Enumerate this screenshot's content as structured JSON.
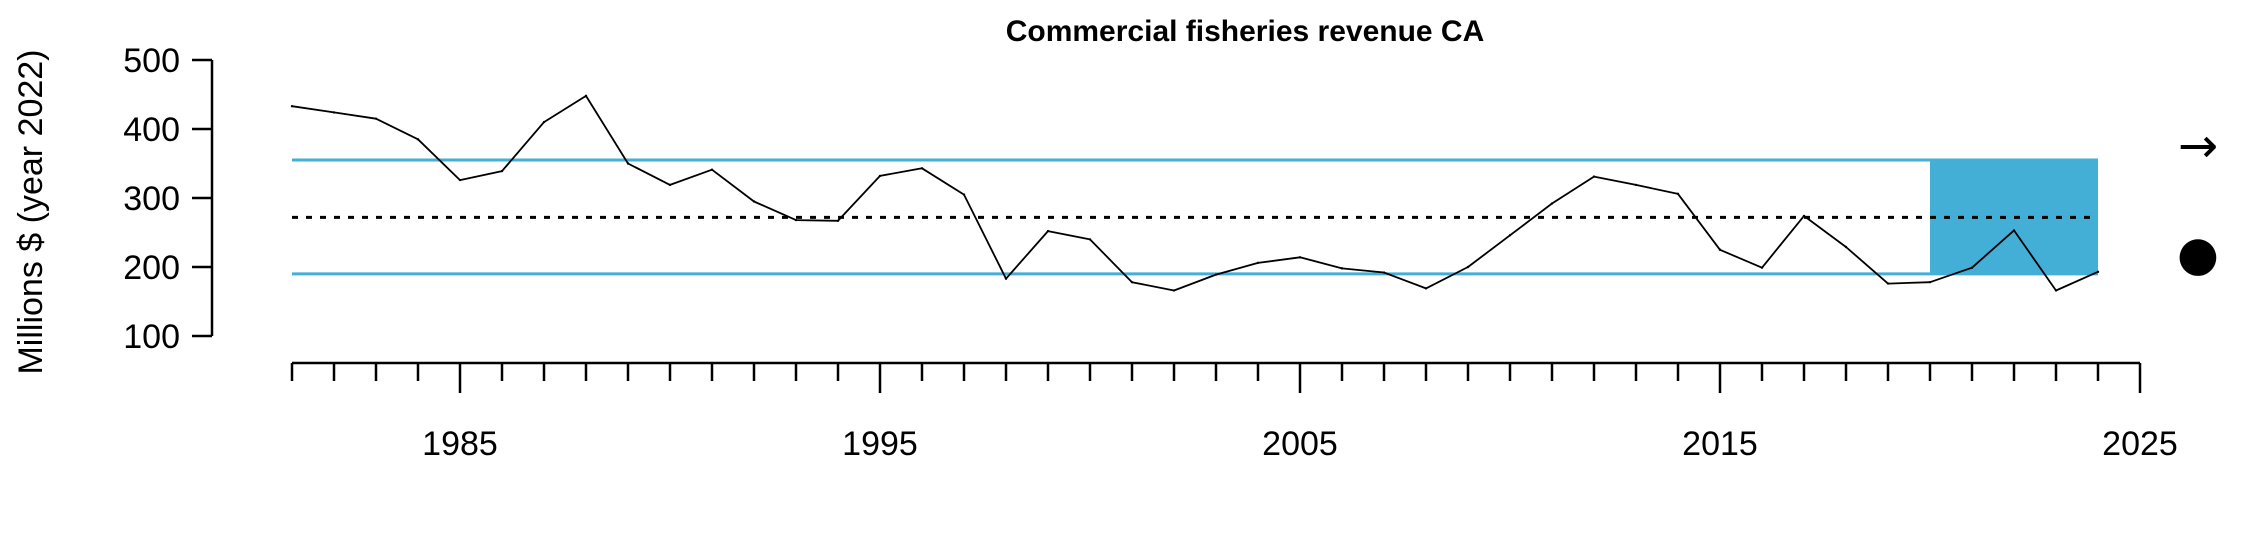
{
  "chart_data": {
    "type": "line",
    "title": "Commercial fisheries revenue CA",
    "xlabel": "",
    "ylabel": "Millions $ (year 2022)",
    "xlim": [
      1981,
      2025
    ],
    "ylim": [
      100,
      500
    ],
    "x_ticks_major": [
      1985,
      1995,
      2005,
      2015,
      2025
    ],
    "y_ticks": [
      100,
      200,
      300,
      400,
      500
    ],
    "grid": false,
    "x": [
      1981,
      1982,
      1983,
      1984,
      1985,
      1986,
      1987,
      1988,
      1989,
      1990,
      1991,
      1992,
      1993,
      1994,
      1995,
      1996,
      1997,
      1998,
      1999,
      2000,
      2001,
      2002,
      2003,
      2004,
      2005,
      2006,
      2007,
      2008,
      2009,
      2010,
      2011,
      2012,
      2013,
      2014,
      2015,
      2016,
      2017,
      2018,
      2019,
      2020,
      2021,
      2022,
      2023,
      2024
    ],
    "series": [
      {
        "values": [
          433,
          424,
          415,
          385,
          326,
          339,
          410,
          448,
          350,
          319,
          341,
          295,
          268,
          267,
          332,
          343,
          305,
          183,
          252,
          240,
          178,
          166,
          189,
          206,
          214,
          198,
          192,
          169,
          200,
          246,
          292,
          331,
          319,
          306,
          225,
          199,
          274,
          229,
          176,
          178,
          199,
          253,
          166,
          193
        ]
      }
    ],
    "mean": 272,
    "upper_sd": 355,
    "lower_sd": 190,
    "recent_window": [
      2020,
      2024
    ],
    "trend_symbol": "→",
    "status_symbol": "●",
    "colors": {
      "line": "#000000",
      "sd_lines": "#44afd6",
      "recent_shade": "#44afd6",
      "mean_line": "#000000"
    }
  }
}
